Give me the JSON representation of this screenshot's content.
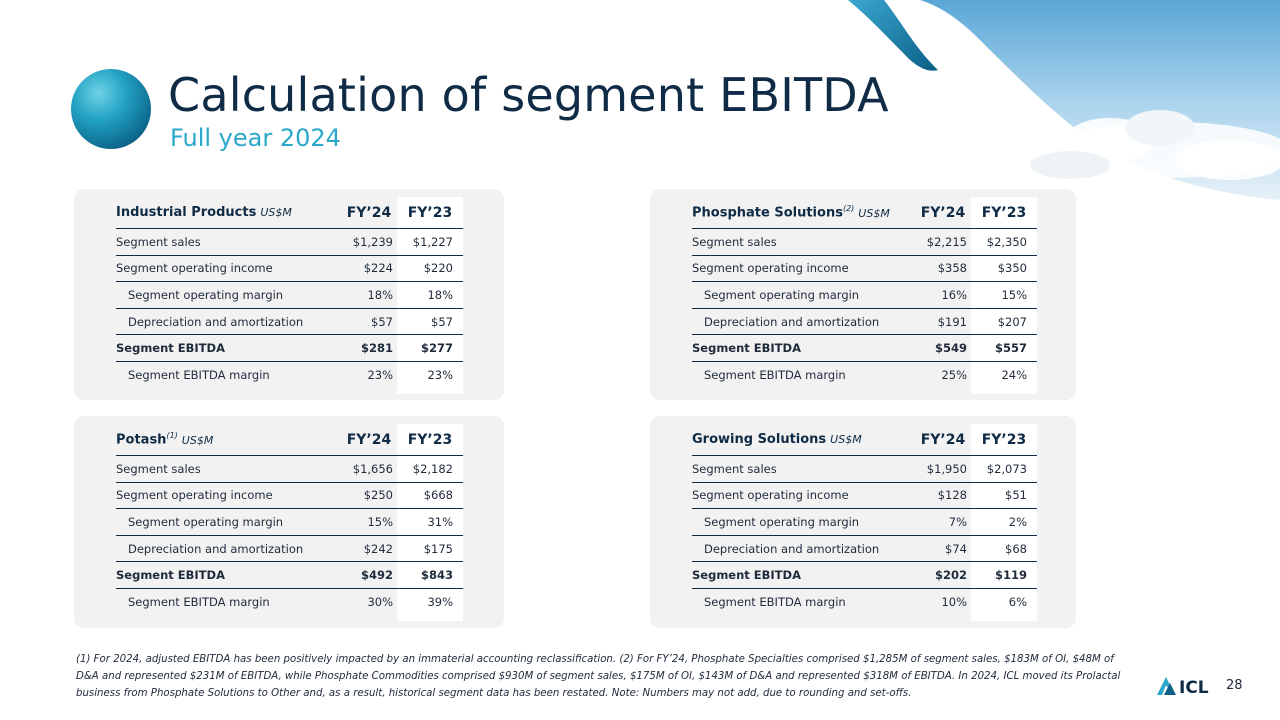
{
  "header": {
    "title": "Calculation of segment EBITDA",
    "subtitle": "Full year 2024"
  },
  "columns": {
    "fy24": "FY’24",
    "fy23": "FY’23",
    "unit": "US$M"
  },
  "segments": [
    {
      "name": "Industrial Products",
      "note": "",
      "rows": [
        {
          "label": "Segment sales",
          "fy24": "$1,239",
          "fy23": "$1,227"
        },
        {
          "label": "Segment operating income",
          "fy24": "$224",
          "fy23": "$220"
        },
        {
          "label": "Segment operating margin",
          "fy24": "18%",
          "fy23": "18%"
        },
        {
          "label": "Depreciation and amortization",
          "fy24": "$57",
          "fy23": "$57"
        },
        {
          "label": "Segment EBITDA",
          "fy24": "$281",
          "fy23": "$277"
        },
        {
          "label": "Segment EBITDA margin",
          "fy24": "23%",
          "fy23": "23%"
        }
      ]
    },
    {
      "name": "Phosphate Solutions",
      "note": "(2)",
      "rows": [
        {
          "label": "Segment sales",
          "fy24": "$2,215",
          "fy23": "$2,350"
        },
        {
          "label": "Segment operating income",
          "fy24": "$358",
          "fy23": "$350"
        },
        {
          "label": "Segment operating margin",
          "fy24": "16%",
          "fy23": "15%"
        },
        {
          "label": "Depreciation and amortization",
          "fy24": "$191",
          "fy23": "$207"
        },
        {
          "label": "Segment EBITDA",
          "fy24": "$549",
          "fy23": "$557"
        },
        {
          "label": "Segment EBITDA margin",
          "fy24": "25%",
          "fy23": "24%"
        }
      ]
    },
    {
      "name": "Potash",
      "note": "(1)",
      "rows": [
        {
          "label": "Segment sales",
          "fy24": "$1,656",
          "fy23": "$2,182"
        },
        {
          "label": "Segment operating income",
          "fy24": "$250",
          "fy23": "$668"
        },
        {
          "label": "Segment operating margin",
          "fy24": "15%",
          "fy23": "31%"
        },
        {
          "label": "Depreciation and amortization",
          "fy24": "$242",
          "fy23": "$175"
        },
        {
          "label": "Segment EBITDA",
          "fy24": "$492",
          "fy23": "$843"
        },
        {
          "label": "Segment EBITDA margin",
          "fy24": "30%",
          "fy23": "39%"
        }
      ]
    },
    {
      "name": "Growing Solutions",
      "note": "",
      "rows": [
        {
          "label": "Segment sales",
          "fy24": "$1,950",
          "fy23": "$2,073"
        },
        {
          "label": "Segment operating income",
          "fy24": "$128",
          "fy23": "$51"
        },
        {
          "label": "Segment operating margin",
          "fy24": "7%",
          "fy23": "2%"
        },
        {
          "label": "Depreciation and amortization",
          "fy24": "$74",
          "fy23": "$68"
        },
        {
          "label": "Segment EBITDA",
          "fy24": "$202",
          "fy23": "$119"
        },
        {
          "label": "Segment EBITDA margin",
          "fy24": "10%",
          "fy23": "6%"
        }
      ]
    }
  ],
  "footnote": "(1) For 2024, adjusted EBITDA has been positively impacted by an immaterial accounting reclassification. (2) For FY’24, Phosphate Specialties comprised $1,285M of segment sales, $183M of OI, $48M of D&A and represented $231M of EBITDA, while Phosphate Commodities comprised $930M of segment sales, $175M of OI, $143M of D&A and represented $318M of EBITDA. In 2024, ICL moved its Prolactal business from Phosphate Solutions to Other and, as a result, historical segment data has been restated. Note: Numbers may not add, due to rounding and set-offs.",
  "logo": {
    "text": "ICL",
    "icon": "icl-logo-icon"
  },
  "page_number": "28",
  "colors": {
    "title": "#0f2b45",
    "subtitle": "#2aa7c9",
    "panel": "#f2f2f2"
  }
}
